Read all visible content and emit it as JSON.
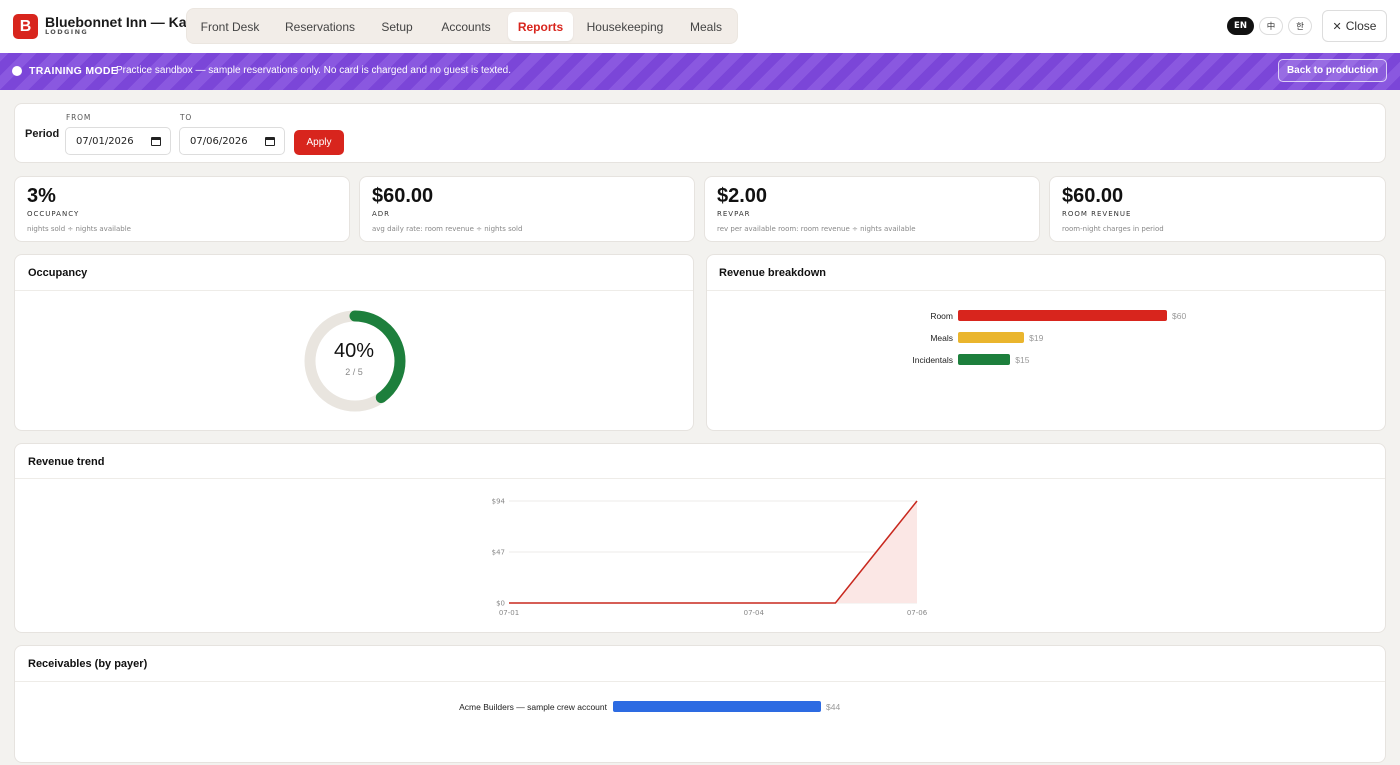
{
  "brand": {
    "logo_letter": "B",
    "name": "Bluebonnet Inn — Katy",
    "subtitle": "LODGING"
  },
  "nav": {
    "tabs": [
      {
        "label": "Front Desk",
        "active": false
      },
      {
        "label": "Reservations",
        "active": false
      },
      {
        "label": "Setup",
        "active": false
      },
      {
        "label": "Accounts",
        "active": false
      },
      {
        "label": "Reports",
        "active": true
      },
      {
        "label": "Housekeeping",
        "active": false
      },
      {
        "label": "Meals",
        "active": false
      }
    ]
  },
  "languages": [
    {
      "label": "EN",
      "active": true
    },
    {
      "label": "中",
      "active": false
    },
    {
      "label": "한",
      "active": false
    }
  ],
  "close_button": {
    "icon": "close-icon",
    "label": "Close"
  },
  "banner": {
    "title": "TRAINING MODE",
    "text": "Practice sandbox — sample reservations only. No card is charged and no guest is texted.",
    "button": "Back to production"
  },
  "period": {
    "label": "Period",
    "from_label": "FROM",
    "from_value": "07/01/2026",
    "to_label": "TO",
    "to_value": "07/06/2026",
    "apply_label": "Apply"
  },
  "kpis": [
    {
      "value": "3%",
      "label": "OCCUPANCY",
      "note": "nights sold ÷ nights available"
    },
    {
      "value": "$60.00",
      "label": "ADR",
      "note": "avg daily rate: room revenue ÷ nights sold"
    },
    {
      "value": "$2.00",
      "label": "REVPAR",
      "note": "rev per available room: room revenue ÷ nights available"
    },
    {
      "value": "$60.00",
      "label": "ROOM REVENUE",
      "note": "room-night charges in period"
    }
  ],
  "occupancy": {
    "title": "Occupancy",
    "percent_label": "40%",
    "fraction_label": "2 / 5",
    "fraction": 0.4
  },
  "revenue_breakdown": {
    "title": "Revenue breakdown",
    "items": [
      {
        "label": "Room",
        "value": 60,
        "value_label": "$60",
        "color": "#d8251d"
      },
      {
        "label": "Meals",
        "value": 19,
        "value_label": "$19",
        "color": "#eab52d"
      },
      {
        "label": "Incidentals",
        "value": 15,
        "value_label": "$15",
        "color": "#1d7f3c"
      }
    ]
  },
  "receivables": {
    "title": "Receivables (by payer)",
    "items": [
      {
        "label": "Acme Builders — sample crew account",
        "value": 44,
        "value_label": "$44",
        "color": "#2d6be2"
      }
    ]
  },
  "chart_data": {
    "type": "area",
    "title": "Revenue trend",
    "x": [
      "07-01",
      "07-02",
      "07-03",
      "07-04",
      "07-05",
      "07-06"
    ],
    "series": [
      {
        "values": [
          0,
          0,
          0,
          0,
          0,
          94
        ]
      }
    ],
    "x_tick_labels": [
      "07-01",
      "07-04",
      "07-06"
    ],
    "y_tick_labels": [
      "$0",
      "$47",
      "$94"
    ],
    "ylim": [
      0,
      94
    ],
    "grid": true,
    "line_color": "#c8281e",
    "fill_color": "#fbe7e5"
  }
}
